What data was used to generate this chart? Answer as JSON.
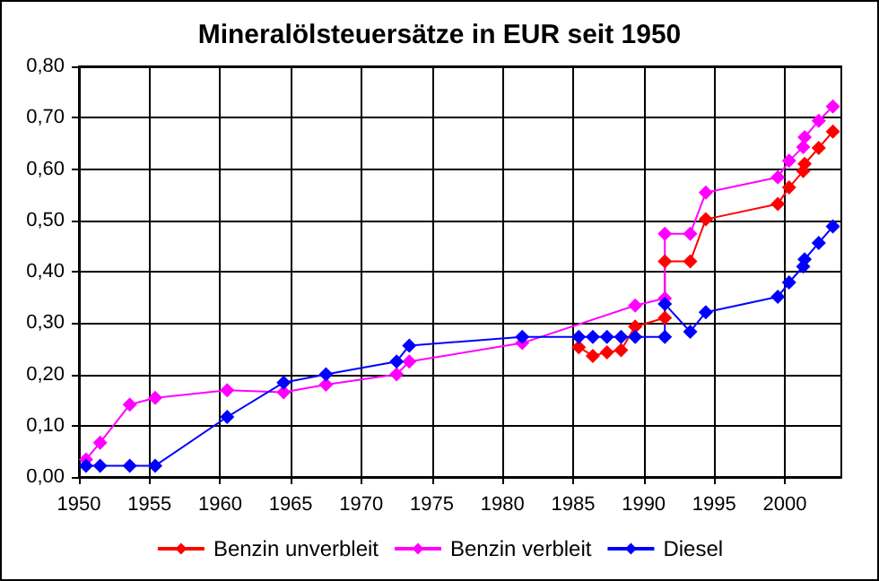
{
  "chart_data": {
    "type": "line",
    "title": "Mineralölsteuersätze in EUR seit 1950",
    "xlim": [
      1950,
      2004
    ],
    "xticks": [
      1950,
      1955,
      1960,
      1965,
      1970,
      1975,
      1980,
      1985,
      1990,
      1995,
      2000
    ],
    "ylim": [
      0,
      0.8
    ],
    "yticks": [
      {
        "value": 0,
        "label": "0,00"
      },
      {
        "value": 0.1,
        "label": "0,10"
      },
      {
        "value": 0.2,
        "label": "0,20"
      },
      {
        "value": 0.3,
        "label": "0,30"
      },
      {
        "value": 0.4,
        "label": "0,40"
      },
      {
        "value": 0.5,
        "label": "0,50"
      },
      {
        "value": 0.6,
        "label": "0,60"
      },
      {
        "value": 0.7,
        "label": "0,70"
      },
      {
        "value": 0.8,
        "label": "0,80"
      }
    ],
    "grid": true,
    "legend": "bottom",
    "marker": "diamond",
    "line_style": "solid",
    "series": [
      {
        "name": "Benzin unverbleit",
        "color": "#ff0000",
        "x": [
          1985.4,
          1986.4,
          1987.4,
          1988.4,
          1989.4,
          1991.5,
          1991.5,
          1993.3,
          1994.4,
          1999.5,
          2000.3,
          2001.3,
          2001.4,
          2002.4,
          2003.4
        ],
        "values": [
          0.253,
          0.236,
          0.243,
          0.247,
          0.293,
          0.31,
          0.42,
          0.42,
          0.502,
          0.532,
          0.564,
          0.596,
          0.61,
          0.641,
          0.673
        ]
      },
      {
        "name": "Benzin verbleit",
        "color": "#ff00ff",
        "x": [
          1950.5,
          1951.5,
          1953.6,
          1955.4,
          1960.5,
          1964.5,
          1967.5,
          1972.5,
          1973.4,
          1981.4,
          1985.4,
          1986.4,
          1987.4,
          1988.4,
          1989.4,
          1991.5,
          1991.5,
          1993.3,
          1994.4,
          1999.5,
          2000.3,
          2001.3,
          2001.4,
          2002.4,
          2003.4
        ],
        "values": [
          0.034,
          0.067,
          0.141,
          0.154,
          0.169,
          0.165,
          0.18,
          0.2,
          0.225,
          0.261,
          null,
          null,
          null,
          null,
          0.334,
          0.348,
          0.474,
          0.474,
          0.554,
          0.584,
          0.616,
          0.643,
          0.662,
          0.694,
          0.722
        ]
      },
      {
        "name": "Diesel",
        "color": "#0000ff",
        "x": [
          1950.5,
          1951.5,
          1953.6,
          1955.4,
          1960.5,
          1964.5,
          1967.5,
          1972.5,
          1973.4,
          1981.4,
          1985.4,
          1986.4,
          1987.4,
          1988.4,
          1989.4,
          1991.5,
          1991.5,
          1993.3,
          1994.4,
          1999.5,
          2000.3,
          2001.3,
          2001.4,
          2002.4,
          2003.4
        ],
        "values": [
          0.022,
          0.022,
          0.022,
          0.022,
          0.117,
          0.184,
          0.2,
          0.225,
          0.256,
          0.273,
          0.273,
          0.273,
          0.273,
          0.273,
          0.273,
          0.273,
          0.337,
          0.283,
          0.321,
          0.351,
          0.379,
          0.41,
          0.424,
          0.456,
          0.488
        ]
      }
    ]
  }
}
